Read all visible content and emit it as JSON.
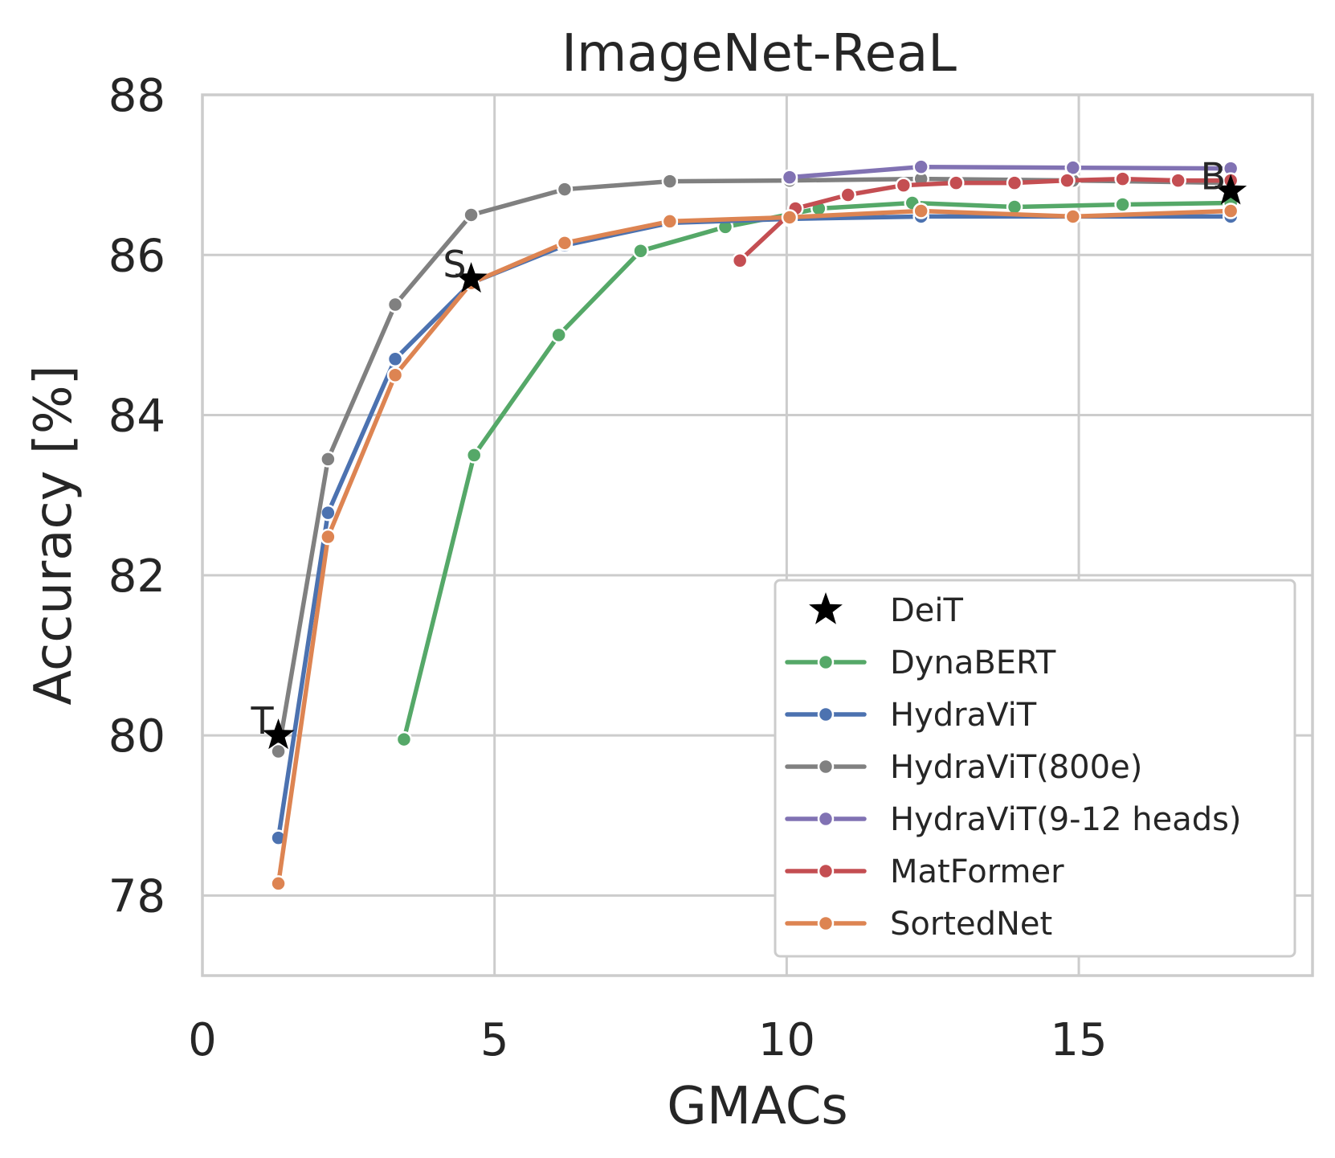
{
  "chart_data": {
    "type": "line",
    "title": "ImageNet-ReaL",
    "xlabel": "GMACs",
    "ylabel": "Accuracy [%]",
    "xlim": [
      0,
      19
    ],
    "ylim": [
      77,
      88
    ],
    "xticks": [
      0,
      5,
      10,
      15
    ],
    "yticks": [
      78,
      80,
      82,
      84,
      86,
      88
    ],
    "grid": true,
    "legend_position": "lower-right",
    "reference_points": {
      "name": "DeiT",
      "color": "#000000",
      "marker": "star",
      "points": [
        {
          "label": "T",
          "x": 1.3,
          "y": 80.0
        },
        {
          "label": "S",
          "x": 4.6,
          "y": 85.7
        },
        {
          "label": "B",
          "x": 17.6,
          "y": 86.8
        }
      ]
    },
    "series": [
      {
        "name": "DynaBERT",
        "color": "#55a868",
        "x": [
          3.45,
          4.65,
          6.1,
          7.5,
          8.95,
          10.55,
          12.15,
          13.9,
          15.75,
          17.6
        ],
        "y": [
          79.95,
          83.5,
          85.0,
          86.05,
          86.35,
          86.58,
          86.65,
          86.6,
          86.63,
          86.65
        ]
      },
      {
        "name": "HydraViT",
        "color": "#4c72b0",
        "x": [
          1.3,
          2.15,
          3.3,
          4.6,
          6.2,
          8.0,
          10.05,
          12.3,
          14.9,
          17.6
        ],
        "y": [
          78.72,
          82.78,
          84.7,
          85.65,
          86.12,
          86.4,
          86.45,
          86.48,
          86.48,
          86.48
        ]
      },
      {
        "name": "HydraViT(800e)",
        "color": "#808080",
        "x": [
          1.3,
          2.15,
          3.3,
          4.6,
          6.2,
          8.0,
          10.05,
          12.3,
          14.9,
          17.6
        ],
        "y": [
          79.8,
          83.45,
          85.38,
          86.5,
          86.82,
          86.92,
          86.93,
          86.95,
          86.93,
          86.9
        ]
      },
      {
        "name": "HydraViT(9-12 heads)",
        "color": "#8172b3",
        "x": [
          10.05,
          12.3,
          14.9,
          17.6
        ],
        "y": [
          86.97,
          87.1,
          87.09,
          87.08
        ]
      },
      {
        "name": "MatFormer",
        "color": "#c44e52",
        "x": [
          9.2,
          10.15,
          11.05,
          12.0,
          12.9,
          13.9,
          14.8,
          15.75,
          16.7,
          17.6
        ],
        "y": [
          85.93,
          86.58,
          86.75,
          86.87,
          86.9,
          86.9,
          86.93,
          86.95,
          86.93,
          86.93
        ]
      },
      {
        "name": "SortedNet",
        "color": "#dd8452",
        "x": [
          1.3,
          2.15,
          3.3,
          4.6,
          6.2,
          8.0,
          10.05,
          12.3,
          14.9,
          17.6
        ],
        "y": [
          78.15,
          82.48,
          84.5,
          85.65,
          86.15,
          86.42,
          86.47,
          86.55,
          86.48,
          86.55
        ]
      }
    ]
  }
}
